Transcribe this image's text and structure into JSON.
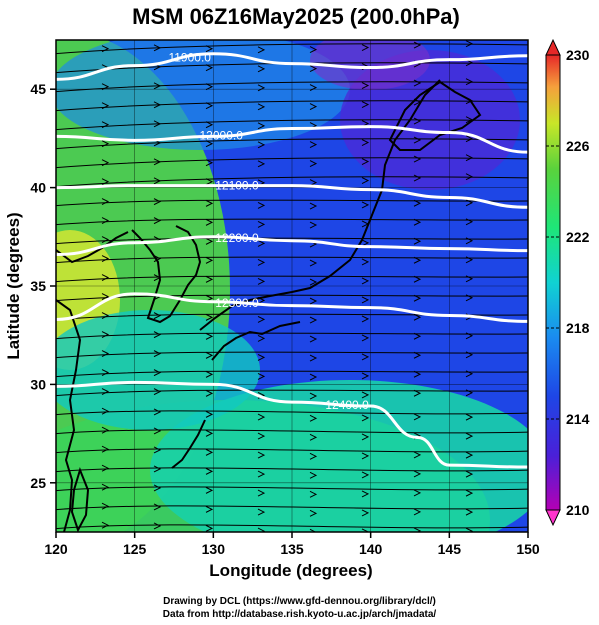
{
  "title": "MSM 06Z16May2025 (200.0hPa)",
  "x_axis": {
    "label": "Longitude (degrees)",
    "ticks": [
      "120",
      "125",
      "130",
      "135",
      "140",
      "145",
      "150"
    ]
  },
  "y_axis": {
    "label": "Latitude  (degrees)",
    "ticks": [
      "25",
      "30",
      "35",
      "40",
      "45"
    ]
  },
  "colorbar": {
    "ticks": [
      "230",
      "226",
      "222",
      "218",
      "214",
      "210"
    ],
    "min": 210,
    "max": 230
  },
  "contours": [
    {
      "label": "11900.0"
    },
    {
      "label": "12000.0"
    },
    {
      "label": "12100.0"
    },
    {
      "label": "12200.0"
    },
    {
      "label": "12300.0"
    },
    {
      "label": "12400.0"
    }
  ],
  "credits": {
    "line1": "Drawing by DCL (https://www.gfd-dennou.org/library/dcl/)",
    "line2": "Data from http://database.rish.kyoto-u.ac.jp/arch/jmadata/"
  },
  "chart_data": {
    "type": "heatmap",
    "title": "MSM 06Z16May2025 (200.0hPa)",
    "xlabel": "Longitude (degrees)",
    "ylabel": "Latitude  (degrees)",
    "xlim": [
      120,
      150
    ],
    "ylim": [
      22.5,
      47.5
    ],
    "grid": true,
    "colorbar_range": [
      210,
      230
    ],
    "contour_lines": [
      {
        "value": 11900.0,
        "lon": [
          120,
          125,
          130,
          135,
          140,
          145,
          150
        ],
        "lat": [
          45.5,
          46.2,
          46.8,
          46.3,
          46.1,
          46.5,
          46.7
        ]
      },
      {
        "value": 12000.0,
        "lon": [
          120,
          125,
          130,
          135,
          140,
          145,
          150
        ],
        "lat": [
          42.6,
          42.4,
          42.6,
          43.0,
          43.1,
          42.8,
          41.8
        ]
      },
      {
        "value": 12100.0,
        "lon": [
          120,
          125,
          130,
          135,
          140,
          145,
          150
        ],
        "lat": [
          40.0,
          40.1,
          40.1,
          40.1,
          39.9,
          39.5,
          39.0
        ]
      },
      {
        "value": 12200.0,
        "lon": [
          120,
          125,
          130,
          135,
          140,
          145,
          150
        ],
        "lat": [
          36.6,
          37.2,
          37.5,
          37.3,
          37.0,
          36.9,
          36.8
        ]
      },
      {
        "value": 12300.0,
        "lon": [
          120,
          125,
          130,
          135,
          140,
          145,
          150
        ],
        "lat": [
          33.3,
          34.6,
          34.2,
          34.0,
          33.9,
          33.5,
          33.2
        ]
      },
      {
        "value": 12400.0,
        "lon": [
          120,
          125,
          130,
          135,
          140,
          143,
          145,
          150
        ],
        "lat": [
          29.9,
          30.1,
          30.0,
          29.1,
          28.9,
          27.3,
          25.9,
          25.8
        ]
      }
    ]
  }
}
